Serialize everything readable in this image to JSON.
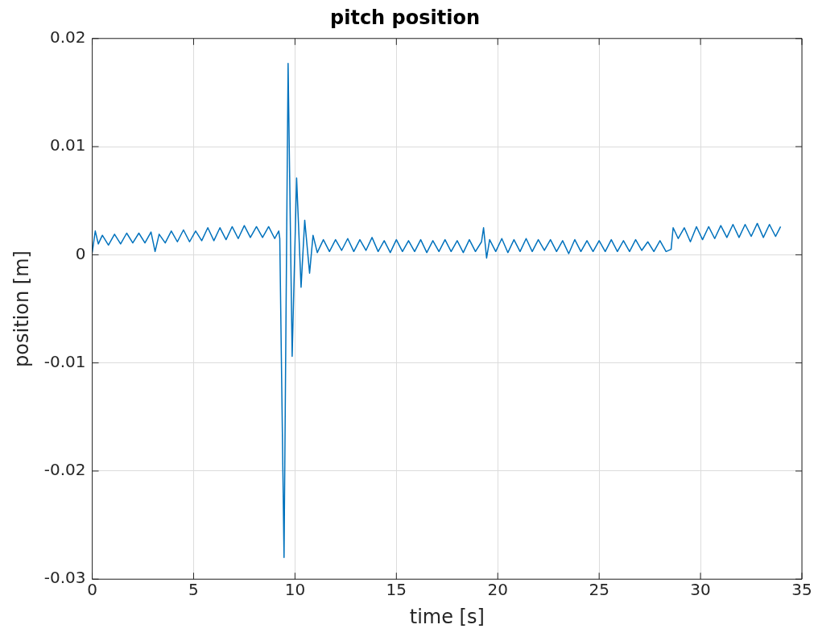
{
  "chart_data": {
    "type": "line",
    "title": "pitch position",
    "xlabel": "time [s]",
    "ylabel": "position [m]",
    "x": [
      0,
      0.15,
      0.3,
      0.5,
      0.8,
      1.1,
      1.4,
      1.7,
      2.0,
      2.3,
      2.6,
      2.9,
      3.1,
      3.3,
      3.6,
      3.9,
      4.2,
      4.5,
      4.8,
      5.1,
      5.4,
      5.7,
      6.0,
      6.3,
      6.6,
      6.9,
      7.2,
      7.5,
      7.8,
      8.1,
      8.4,
      8.7,
      9.0,
      9.2,
      9.25,
      9.46,
      9.66,
      9.86,
      10.08,
      10.3,
      10.48,
      10.72,
      10.89,
      11.1,
      11.4,
      11.7,
      12.0,
      12.3,
      12.6,
      12.9,
      13.2,
      13.5,
      13.8,
      14.1,
      14.4,
      14.7,
      15.0,
      15.3,
      15.6,
      15.9,
      16.2,
      16.5,
      16.8,
      17.1,
      17.4,
      17.7,
      18.0,
      18.3,
      18.6,
      18.9,
      19.2,
      19.3,
      19.45,
      19.6,
      19.9,
      20.2,
      20.5,
      20.8,
      21.1,
      21.4,
      21.7,
      22.0,
      22.3,
      22.6,
      22.9,
      23.2,
      23.5,
      23.8,
      24.1,
      24.4,
      24.7,
      25.0,
      25.3,
      25.6,
      25.9,
      26.2,
      26.5,
      26.8,
      27.1,
      27.4,
      27.7,
      28.0,
      28.3,
      28.55,
      28.65,
      28.9,
      29.2,
      29.5,
      29.8,
      30.1,
      30.4,
      30.7,
      31.0,
      31.3,
      31.6,
      31.9,
      32.2,
      32.5,
      32.8,
      33.1,
      33.4,
      33.7,
      33.95
    ],
    "series": [
      {
        "color": "#0072bd",
        "values": [
          0.0002,
          0.0022,
          0.001,
          0.0018,
          0.0009,
          0.0019,
          0.001,
          0.002,
          0.0011,
          0.002,
          0.0011,
          0.0021,
          0.0003,
          0.0019,
          0.0011,
          0.0022,
          0.0012,
          0.0023,
          0.0012,
          0.0022,
          0.0013,
          0.0025,
          0.0013,
          0.0025,
          0.0014,
          0.0026,
          0.0015,
          0.0027,
          0.0016,
          0.0026,
          0.0016,
          0.0026,
          0.0015,
          0.0022,
          0.0015,
          -0.028,
          0.0177,
          -0.0094,
          0.0071,
          -0.003,
          0.0032,
          -0.0017,
          0.0018,
          0.0002,
          0.0014,
          0.0003,
          0.0014,
          0.0004,
          0.0015,
          0.0003,
          0.0014,
          0.0004,
          0.0016,
          0.0003,
          0.0013,
          0.0002,
          0.0014,
          0.0003,
          0.0013,
          0.0003,
          0.0014,
          0.0002,
          0.0013,
          0.0003,
          0.0014,
          0.0003,
          0.0013,
          0.0002,
          0.0014,
          0.0003,
          0.0012,
          0.0025,
          -0.0003,
          0.0014,
          0.0003,
          0.0015,
          0.0002,
          0.0014,
          0.0003,
          0.0015,
          0.0003,
          0.0014,
          0.0004,
          0.0014,
          0.0003,
          0.0013,
          0.0001,
          0.0014,
          0.0003,
          0.0013,
          0.0003,
          0.0013,
          0.0003,
          0.0014,
          0.0003,
          0.0013,
          0.0003,
          0.0014,
          0.0004,
          0.0012,
          0.0003,
          0.0013,
          0.0003,
          0.0005,
          0.0025,
          0.0015,
          0.0025,
          0.0012,
          0.0026,
          0.0014,
          0.0026,
          0.0015,
          0.0027,
          0.0016,
          0.0028,
          0.0016,
          0.0028,
          0.0017,
          0.0029,
          0.0016,
          0.0028,
          0.0017,
          0.0026
        ]
      }
    ],
    "xlim": [
      0,
      35
    ],
    "xticks": [
      0,
      5,
      10,
      15,
      20,
      25,
      30,
      35
    ],
    "ylim": [
      -0.03,
      0.02
    ],
    "yticks": [
      -0.03,
      -0.02,
      -0.01,
      0,
      0.01,
      0.02
    ],
    "grid": true
  }
}
